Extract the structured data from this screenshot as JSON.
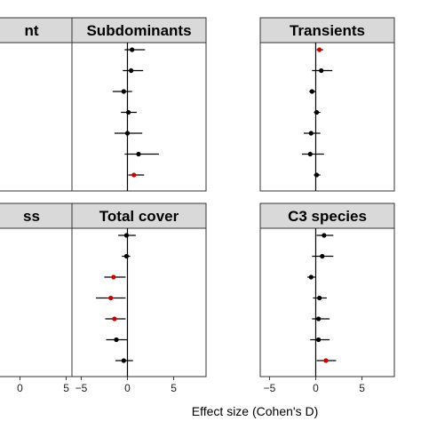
{
  "chart_data": {
    "type": "scatter",
    "xlabel": "Effect size (Cohen's D)",
    "xlim": [
      -6,
      8.5
    ],
    "xticks": [
      -5,
      0,
      5
    ],
    "reference_line_x": 0,
    "grid": false,
    "colors": {
      "significant": "#cc0000",
      "normal": "#000000",
      "strip": "#d9d9d9"
    },
    "panels": [
      {
        "title": "nt",
        "column": 0,
        "row": 0,
        "points": []
      },
      {
        "title": "Subdominants",
        "column": 1,
        "row": 0,
        "points": [
          {
            "est": 0.5,
            "lo": -0.3,
            "hi": 1.9,
            "significant": false
          },
          {
            "est": 0.4,
            "lo": -0.5,
            "hi": 1.7,
            "significant": false
          },
          {
            "est": -0.4,
            "lo": -1.6,
            "hi": 0.5,
            "significant": false
          },
          {
            "est": 0.1,
            "lo": -0.7,
            "hi": 1.0,
            "significant": false
          },
          {
            "est": 0.0,
            "lo": -1.4,
            "hi": 1.6,
            "significant": false
          },
          {
            "est": 1.2,
            "lo": -0.3,
            "hi": 3.4,
            "significant": false
          },
          {
            "est": 0.7,
            "lo": 0.1,
            "hi": 1.8,
            "significant": true
          }
        ]
      },
      {
        "title": "Transients",
        "column": 2,
        "row": 0,
        "points": [
          {
            "est": 0.4,
            "lo": 0.1,
            "hi": 0.8,
            "significant": true
          },
          {
            "est": 0.6,
            "lo": -0.4,
            "hi": 1.8,
            "significant": false
          },
          {
            "est": -0.4,
            "lo": -0.7,
            "hi": 0.0,
            "significant": false
          },
          {
            "est": 0.1,
            "lo": -0.2,
            "hi": 0.5,
            "significant": false
          },
          {
            "est": -0.5,
            "lo": -1.3,
            "hi": 0.5,
            "significant": false
          },
          {
            "est": -0.6,
            "lo": -1.5,
            "hi": 0.9,
            "significant": false
          },
          {
            "est": 0.1,
            "lo": -0.2,
            "hi": 0.5,
            "significant": false
          }
        ]
      },
      {
        "title": "ss",
        "column": 0,
        "row": 1,
        "points": []
      },
      {
        "title": "Total cover",
        "column": 1,
        "row": 1,
        "points": [
          {
            "est": -0.1,
            "lo": -1.0,
            "hi": 0.9,
            "significant": false
          },
          {
            "est": -0.1,
            "lo": -0.6,
            "hi": 0.3,
            "significant": false
          },
          {
            "est": -1.5,
            "lo": -2.5,
            "hi": -0.2,
            "significant": true
          },
          {
            "est": -1.8,
            "lo": -3.4,
            "hi": -0.2,
            "significant": true
          },
          {
            "est": -1.4,
            "lo": -2.4,
            "hi": -0.2,
            "significant": true
          },
          {
            "est": -1.2,
            "lo": -2.3,
            "hi": 0.0,
            "significant": false
          },
          {
            "est": -0.4,
            "lo": -1.3,
            "hi": 0.6,
            "significant": false
          }
        ]
      },
      {
        "title": "C3 species",
        "column": 2,
        "row": 1,
        "points": [
          {
            "est": 0.9,
            "lo": 0.1,
            "hi": 1.9,
            "significant": false
          },
          {
            "est": 0.7,
            "lo": -0.4,
            "hi": 1.9,
            "significant": false
          },
          {
            "est": -0.5,
            "lo": -0.9,
            "hi": 0.0,
            "significant": false
          },
          {
            "est": 0.4,
            "lo": -0.3,
            "hi": 1.2,
            "significant": false
          },
          {
            "est": 0.3,
            "lo": -0.4,
            "hi": 1.5,
            "significant": false
          },
          {
            "est": 0.3,
            "lo": -0.6,
            "hi": 1.5,
            "significant": false
          },
          {
            "est": 1.1,
            "lo": 0.1,
            "hi": 2.2,
            "significant": true
          }
        ]
      }
    ]
  }
}
